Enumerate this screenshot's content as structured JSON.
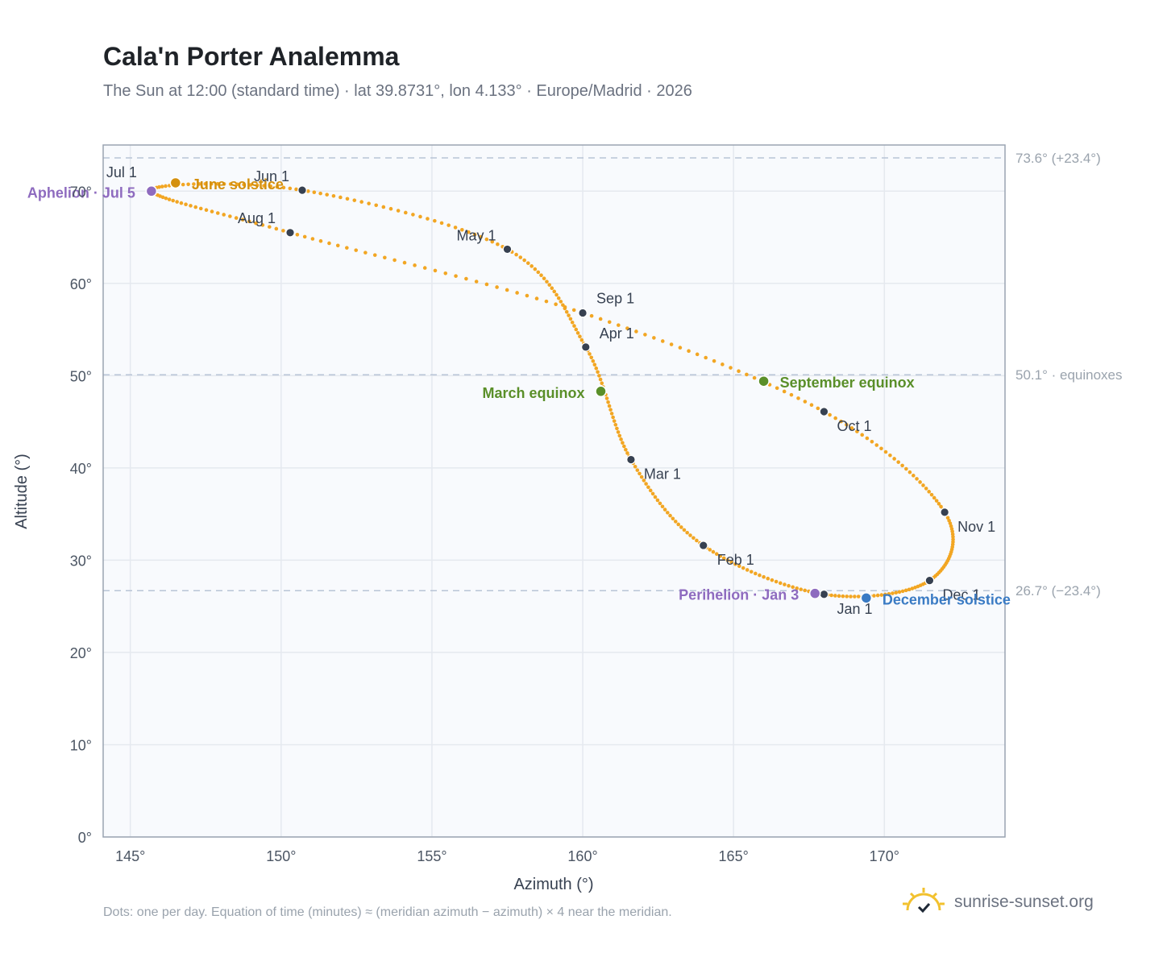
{
  "header": {
    "title": "Cala'n Porter Analemma",
    "subtitle": "The Sun at 12:00 (standard time) · lat 39.8731°, lon 4.133° · Europe/Madrid · 2026"
  },
  "footer": {
    "note": "Dots: one per day. Equation of time (minutes) ≈ (meridian azimuth − azimuth) × 4 near the meridian.",
    "brand": "sunrise-sunset.org"
  },
  "colors": {
    "curve": "#f2a623",
    "month_marker": "#374151",
    "equinox": "#5a8f29",
    "june_solstice": "#d4900e",
    "december_solstice": "#3a7bc4",
    "apsis": "#8e6bbf",
    "ref_line": "#b8c4d6",
    "plot_bg": "#f8fafd",
    "grid": "#e5e9ef"
  },
  "chart_data": {
    "type": "scatter",
    "xlabel": "Azimuth (°)",
    "ylabel": "Altitude (°)",
    "xlim": [
      144.1,
      174.0
    ],
    "ylim": [
      0,
      75
    ],
    "x_ticks": [
      "145°",
      "150°",
      "155°",
      "160°",
      "165°",
      "170°"
    ],
    "x_tick_values": [
      145,
      150,
      155,
      160,
      165,
      170
    ],
    "y_ticks": [
      "0°",
      "10°",
      "20°",
      "30°",
      "40°",
      "50°",
      "60°",
      "70°"
    ],
    "y_tick_values": [
      0,
      10,
      20,
      30,
      40,
      50,
      60,
      70
    ],
    "grid": true,
    "reference_lines": [
      {
        "y": 73.6,
        "label": "73.6° (+23.4°)"
      },
      {
        "y": 50.1,
        "label": "50.1° · equinoxes"
      },
      {
        "y": 26.7,
        "label": "26.7° (−23.4°)"
      }
    ],
    "monthly_points": [
      {
        "label": "Jan 1",
        "x": 168.0,
        "y": 26.3
      },
      {
        "label": "Feb 1",
        "x": 164.0,
        "y": 31.6
      },
      {
        "label": "Mar 1",
        "x": 161.6,
        "y": 40.9
      },
      {
        "label": "Apr 1",
        "x": 160.1,
        "y": 53.1
      },
      {
        "label": "May 1",
        "x": 157.5,
        "y": 63.7
      },
      {
        "label": "Jun 1",
        "x": 150.7,
        "y": 70.1
      },
      {
        "label": "Jul 1",
        "x": 145.7,
        "y": 70.1
      },
      {
        "label": "Aug 1",
        "x": 150.3,
        "y": 65.5
      },
      {
        "label": "Sep 1",
        "x": 160.0,
        "y": 56.8
      },
      {
        "label": "Oct 1",
        "x": 168.0,
        "y": 46.1
      },
      {
        "label": "Nov 1",
        "x": 172.0,
        "y": 35.2
      },
      {
        "label": "Dec 1",
        "x": 171.5,
        "y": 27.8
      }
    ],
    "events": [
      {
        "label": "March equinox",
        "x": 160.6,
        "y": 48.3,
        "kind": "equinox"
      },
      {
        "label": "September equinox",
        "x": 166.0,
        "y": 49.4,
        "kind": "equinox"
      },
      {
        "label": "June solstice",
        "x": 146.5,
        "y": 70.9,
        "kind": "june_solstice"
      },
      {
        "label": "December solstice",
        "x": 169.4,
        "y": 25.9,
        "kind": "december_solstice"
      },
      {
        "label": "Perihelion · Jan 3",
        "x": 167.7,
        "y": 26.4,
        "kind": "apsis"
      },
      {
        "label": "Aphelion · Jul 5",
        "x": 145.7,
        "y": 70.0,
        "kind": "apsis"
      }
    ]
  }
}
